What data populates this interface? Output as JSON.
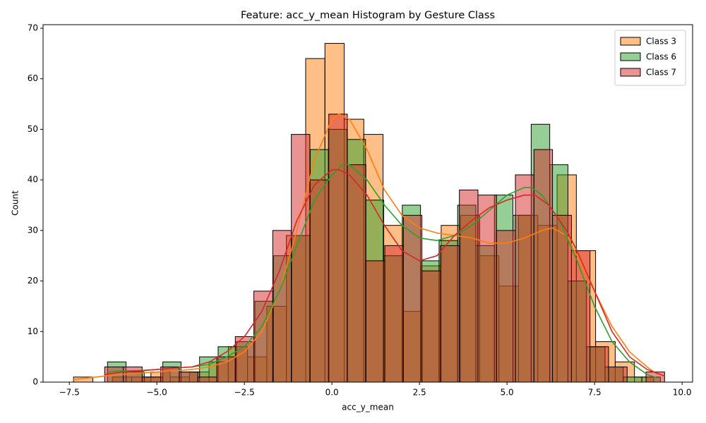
{
  "chart_data": {
    "type": "histogram",
    "title": "Feature: acc_y_mean Histogram by Gesture Class",
    "x_label": "acc_y_mean",
    "y_label": "Count",
    "xlim": [
      -8.25,
      10.3
    ],
    "ylim": [
      0,
      70.7
    ],
    "xticks": [
      {
        "value": -7.5,
        "label": "−7.5"
      },
      {
        "value": -5,
        "label": "−5.0"
      },
      {
        "value": -2.5,
        "label": "−2.5"
      },
      {
        "value": 0,
        "label": "0.0"
      },
      2.5,
      {
        "value": 5,
        "label": "5.0"
      },
      7.5,
      {
        "value": 10,
        "label": "10.0"
      }
    ],
    "yticks": [
      0,
      10,
      20,
      30,
      40,
      50,
      60,
      70
    ],
    "legend": "upper right",
    "series": [
      {
        "name": "Class 3",
        "color": "#ff7f0e",
        "bins": [
          -7.38,
          -6.83,
          -6.27,
          -5.72,
          -5.17,
          -4.62,
          -4.07,
          -3.51,
          -2.96,
          -2.41,
          -1.86,
          -1.3,
          -0.75,
          -0.2,
          0.35,
          0.91,
          1.46,
          2.01,
          2.56,
          3.12,
          3.67,
          4.22,
          4.77,
          5.33,
          5.88,
          6.43,
          6.98,
          7.53,
          8.09,
          8.64,
          9.19
        ],
        "values": [
          1,
          0,
          1,
          1,
          2,
          1,
          2,
          4,
          7,
          5,
          15,
          29,
          64,
          67,
          52,
          49,
          31,
          14,
          23,
          31,
          33,
          25,
          19,
          33,
          31,
          41,
          26,
          8,
          4,
          1
        ],
        "kde_x": [
          -7.4,
          -7,
          -6.5,
          -6,
          -5.5,
          -5,
          -4.5,
          -4,
          -3.5,
          -3,
          -2.5,
          -2,
          -1.5,
          -1,
          -0.5,
          0,
          0.2,
          0.5,
          1,
          1.5,
          2,
          2.5,
          3,
          3.5,
          4,
          4.5,
          5,
          5.5,
          6,
          6.3,
          6.7,
          7,
          7.5,
          8,
          8.5,
          9,
          9.3
        ],
        "kde_y": [
          0.5,
          0.8,
          1.2,
          1.5,
          1.8,
          2,
          2.2,
          2.5,
          3,
          4,
          6,
          10,
          18,
          30,
          44,
          52,
          53,
          52,
          46,
          38,
          33,
          30.5,
          29.5,
          29,
          28.5,
          27.5,
          27.5,
          28.5,
          30,
          30.5,
          29,
          25,
          18,
          11,
          6,
          3,
          1.5
        ]
      },
      {
        "name": "Class 6",
        "color": "#2ca02c",
        "bins": [
          -6.41,
          -5.88,
          -5.36,
          -4.83,
          -4.31,
          -3.78,
          -3.25,
          -2.73,
          -2.2,
          -1.67,
          -1.15,
          -0.62,
          -0.1,
          0.43,
          0.96,
          1.48,
          2.01,
          2.53,
          3.06,
          3.59,
          4.11,
          4.64,
          5.17,
          5.69,
          6.22,
          6.74,
          7.27,
          7.8,
          8.32,
          8.85,
          9.38
        ],
        "values": [
          4,
          2,
          1,
          4,
          2,
          5,
          7,
          8,
          16,
          25,
          29,
          46,
          50,
          48,
          36,
          25,
          35,
          24,
          28,
          35,
          27,
          37,
          33,
          51,
          43,
          20,
          7,
          3,
          1,
          1
        ],
        "kde_x": [
          -6.4,
          -6,
          -5.5,
          -5,
          -4.5,
          -4,
          -3.5,
          -3,
          -2.5,
          -2,
          -1.5,
          -1,
          -0.5,
          0,
          0.3,
          0.5,
          1,
          1.5,
          2,
          2.5,
          3,
          3.5,
          4,
          4.5,
          5,
          5.5,
          5.7,
          6,
          6.5,
          7,
          7.5,
          8,
          8.5,
          9,
          9.3
        ],
        "kde_y": [
          2,
          2.2,
          2.3,
          2.5,
          2.8,
          3,
          3.5,
          5,
          7,
          11,
          18,
          27,
          36,
          41,
          43,
          43,
          40,
          35,
          31,
          28.5,
          28,
          29,
          31,
          34,
          37,
          38.5,
          38.5,
          37,
          32,
          24,
          15,
          8,
          4,
          1.5,
          0.8
        ]
      },
      {
        "name": "Class 7",
        "color": "#d62728",
        "bins": [
          -6.49,
          -5.96,
          -5.42,
          -4.89,
          -4.36,
          -3.83,
          -3.29,
          -2.76,
          -2.23,
          -1.69,
          -1.16,
          -0.63,
          -0.09,
          0.44,
          0.97,
          1.51,
          2.04,
          2.57,
          3.1,
          3.64,
          4.17,
          4.7,
          5.24,
          5.77,
          6.3,
          6.84,
          7.37,
          7.9,
          8.43,
          8.97,
          9.5
        ],
        "values": [
          3,
          3,
          1,
          3,
          2,
          1,
          5,
          9,
          18,
          30,
          49,
          40,
          53,
          43,
          24,
          27,
          33,
          22,
          27,
          38,
          37,
          30,
          41,
          46,
          33,
          26,
          7,
          3,
          0,
          2
        ],
        "kde_x": [
          -6.5,
          -6,
          -5.5,
          -5,
          -4.5,
          -4,
          -3.5,
          -3,
          -2.5,
          -2,
          -1.5,
          -1,
          -0.5,
          0,
          0.2,
          0.5,
          1,
          1.5,
          2,
          2.5,
          3,
          3.5,
          4,
          4.5,
          5,
          5.5,
          5.8,
          6.2,
          6.7,
          7,
          7.5,
          8,
          8.5,
          9,
          9.5
        ],
        "kde_y": [
          1.5,
          2,
          2.2,
          2.5,
          2.8,
          3,
          4,
          6,
          9,
          14,
          22,
          32,
          39,
          42,
          42,
          41,
          37,
          31,
          26,
          24,
          25,
          29,
          32,
          34.5,
          36,
          37,
          37,
          35,
          30,
          26,
          18,
          10,
          5,
          2.5,
          1.2
        ]
      }
    ]
  }
}
